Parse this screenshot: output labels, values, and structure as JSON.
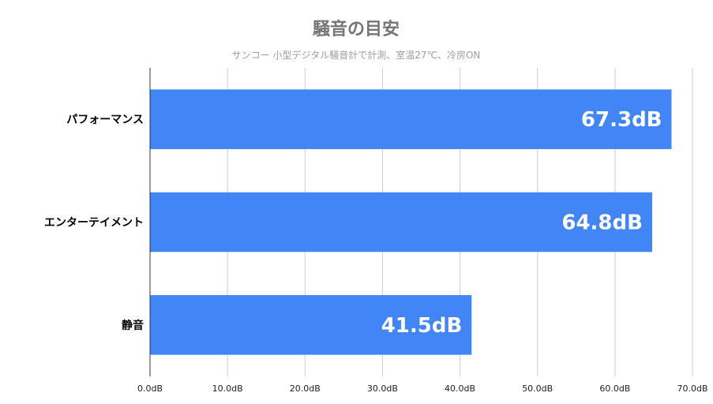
{
  "chart_data": {
    "type": "bar",
    "orientation": "horizontal",
    "title": "騒音の目安",
    "subtitle": "サンコー 小型デジタル騒音計で計測、室温27℃、冷房ON",
    "categories": [
      "パフォーマンス",
      "エンターテイメント",
      "静音"
    ],
    "values": [
      67.3,
      64.8,
      41.5
    ],
    "value_labels": [
      "67.3dB",
      "64.8dB",
      "41.5dB"
    ],
    "xlim": [
      0,
      70
    ],
    "xticks": [
      0,
      10,
      20,
      30,
      40,
      50,
      60,
      70
    ],
    "xtick_labels": [
      "0.0dB",
      "10.0dB",
      "20.0dB",
      "30.0dB",
      "40.0dB",
      "50.0dB",
      "60.0dB",
      "70.0dB"
    ],
    "grid": true,
    "bar_color": "#4285f4"
  }
}
